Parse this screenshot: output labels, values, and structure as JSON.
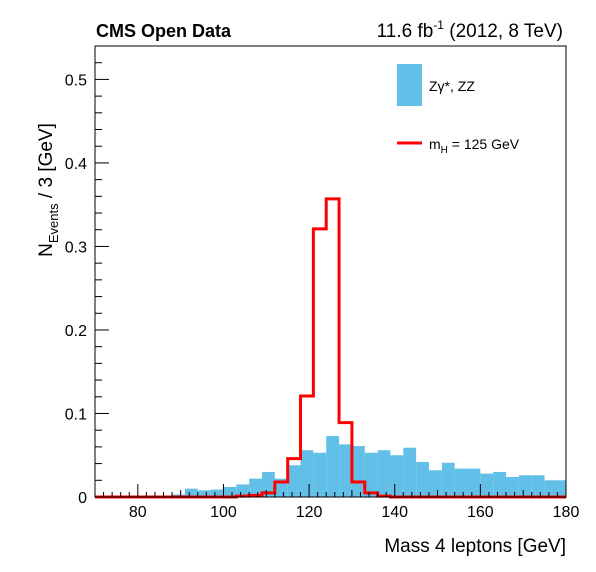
{
  "chart_data": {
    "type": "histogram",
    "title_left": "CMS Open Data",
    "title_right": {
      "lumi": "11.6 fb",
      "lumi_exp": "-1",
      "rest": " (2012, 8 TeV)"
    },
    "xlabel": "Mass 4 leptons [GeV]",
    "ylabel": {
      "main": "N",
      "sub": "Events",
      "rest": " / 3 [GeV]"
    },
    "xlim": [
      70,
      180
    ],
    "ylim": [
      0,
      0.54
    ],
    "bin_width": 3,
    "x_ticks": [
      "80",
      "100",
      "120",
      "140",
      "160",
      "180"
    ],
    "y_ticks": [
      "0",
      "0.1",
      "0.2",
      "0.3",
      "0.4",
      "0.5"
    ],
    "grid": false,
    "legend_position": "top-right",
    "series": [
      {
        "name": "Zγ*, ZZ",
        "style": "filled",
        "color": "#62c0e8",
        "bin_edges": [
          70,
          73,
          76,
          79,
          82,
          85,
          88,
          91,
          94,
          97,
          100,
          103,
          106,
          109,
          112,
          115,
          118,
          121,
          124,
          127,
          130,
          133,
          136,
          139,
          142,
          145,
          148,
          151,
          154,
          157,
          160,
          163,
          166,
          169,
          172,
          175,
          178,
          181
        ],
        "values": [
          0,
          0,
          0,
          0,
          0,
          0,
          0.003,
          0.01,
          0.008,
          0.009,
          0.012,
          0.015,
          0.022,
          0.03,
          0.022,
          0.038,
          0.056,
          0.053,
          0.073,
          0.063,
          0.061,
          0.053,
          0.056,
          0.05,
          0.059,
          0.042,
          0.032,
          0.041,
          0.034,
          0.034,
          0.028,
          0.03,
          0.024,
          0.026,
          0.026,
          0.02,
          0.02
        ]
      },
      {
        "name": "m",
        "name_sub": "H",
        "name_rest": " = 125 GeV",
        "style": "step",
        "color": "#ff0000",
        "bin_edges": [
          70,
          73,
          76,
          79,
          82,
          85,
          88,
          91,
          94,
          97,
          100,
          103,
          106,
          109,
          112,
          115,
          118,
          121,
          124,
          127,
          130,
          133,
          136,
          139,
          142,
          145,
          148,
          151,
          154,
          157,
          160,
          163,
          166,
          169,
          172,
          175,
          178,
          181
        ],
        "values": [
          0,
          0,
          0,
          0,
          0,
          0,
          0,
          0,
          0,
          0,
          0,
          0.001,
          0.002,
          0.005,
          0.018,
          0.046,
          0.121,
          0.321,
          0.357,
          0.089,
          0.018,
          0.005,
          0.001,
          0,
          0,
          0,
          0,
          0,
          0,
          0,
          0,
          0,
          0,
          0,
          0,
          0,
          0
        ]
      }
    ]
  }
}
